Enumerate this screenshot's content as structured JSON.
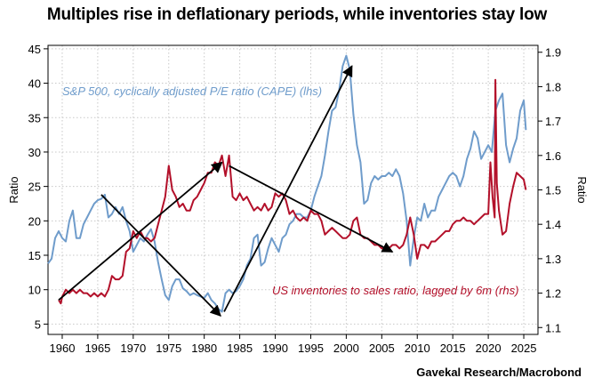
{
  "title": "Multiples rise in deflationary periods, while inventories stay low",
  "source": "Gavekal Research/Macrobond",
  "colors": {
    "cape": "#6f9ccb",
    "inventory": "#b3102a",
    "arrow": "#000000",
    "grid": "#c8c8c8"
  },
  "chart_data": {
    "type": "line",
    "title": "Multiples rise in deflationary periods, while inventories stay low",
    "xlim": [
      1958,
      2027
    ],
    "x_ticks": [
      1960,
      1965,
      1970,
      1975,
      1980,
      1985,
      1990,
      1995,
      2000,
      2005,
      2010,
      2015,
      2020,
      2025
    ],
    "y_left": {
      "label": "Ratio",
      "lim": [
        3.5,
        45.5
      ],
      "ticks": [
        5,
        10,
        15,
        20,
        25,
        30,
        35,
        40,
        45
      ]
    },
    "y_right": {
      "label": "Ratio",
      "lim": [
        1.08,
        1.92
      ],
      "ticks": [
        1.1,
        1.2,
        1.3,
        1.4,
        1.5,
        1.6,
        1.7,
        1.8,
        1.9
      ]
    },
    "grid": true,
    "series": [
      {
        "name": "S&P 500, cyclically adjusted P/E ratio (CAPE) (lhs)",
        "axis": "left",
        "points": [
          [
            1958,
            13.8
          ],
          [
            1958.5,
            14.5
          ],
          [
            1959,
            17.5
          ],
          [
            1959.5,
            18.5
          ],
          [
            1960,
            17.5
          ],
          [
            1960.5,
            17
          ],
          [
            1961,
            20
          ],
          [
            1961.5,
            21.5
          ],
          [
            1962,
            17.5
          ],
          [
            1962.5,
            17.5
          ],
          [
            1963,
            19.5
          ],
          [
            1963.5,
            20.5
          ],
          [
            1964,
            21.5
          ],
          [
            1964.5,
            22.5
          ],
          [
            1965,
            23
          ],
          [
            1965.5,
            23.2
          ],
          [
            1966,
            23.8
          ],
          [
            1966.5,
            20.5
          ],
          [
            1967,
            21
          ],
          [
            1967.5,
            22
          ],
          [
            1968,
            21
          ],
          [
            1968.5,
            22
          ],
          [
            1969,
            20
          ],
          [
            1969.5,
            18.5
          ],
          [
            1970,
            15.5
          ],
          [
            1970.5,
            16.5
          ],
          [
            1971,
            17.5
          ],
          [
            1971.5,
            17
          ],
          [
            1972,
            18
          ],
          [
            1972.5,
            18.8
          ],
          [
            1973,
            17
          ],
          [
            1973.5,
            14
          ],
          [
            1974,
            11.5
          ],
          [
            1974.5,
            9.2
          ],
          [
            1975,
            8.5
          ],
          [
            1975.5,
            10.5
          ],
          [
            1976,
            11.5
          ],
          [
            1976.5,
            11.5
          ],
          [
            1977,
            10.2
          ],
          [
            1977.5,
            9.8
          ],
          [
            1978,
            9.2
          ],
          [
            1978.5,
            9.5
          ],
          [
            1979,
            9.2
          ],
          [
            1979.5,
            9
          ],
          [
            1980,
            8.8
          ],
          [
            1980.5,
            9.5
          ],
          [
            1981,
            8.5
          ],
          [
            1981.5,
            8
          ],
          [
            1982,
            7.2
          ],
          [
            1982.5,
            6.8
          ],
          [
            1983,
            9.5
          ],
          [
            1983.5,
            10
          ],
          [
            1984,
            9.5
          ],
          [
            1984.5,
            9.8
          ],
          [
            1985,
            10.5
          ],
          [
            1985.5,
            11.5
          ],
          [
            1986,
            13.5
          ],
          [
            1986.5,
            14.5
          ],
          [
            1987,
            17.5
          ],
          [
            1987.5,
            18
          ],
          [
            1988,
            13.5
          ],
          [
            1988.5,
            14
          ],
          [
            1989,
            16
          ],
          [
            1989.5,
            17.5
          ],
          [
            1990,
            16.5
          ],
          [
            1990.5,
            15.5
          ],
          [
            1991,
            17.5
          ],
          [
            1991.5,
            18
          ],
          [
            1992,
            19.5
          ],
          [
            1992.5,
            20
          ],
          [
            1993,
            21
          ],
          [
            1993.5,
            21
          ],
          [
            1994,
            20.5
          ],
          [
            1994.5,
            20.5
          ],
          [
            1995,
            21.5
          ],
          [
            1995.5,
            23.5
          ],
          [
            1996,
            25
          ],
          [
            1996.5,
            26.5
          ],
          [
            1997,
            29.5
          ],
          [
            1997.5,
            33
          ],
          [
            1998,
            36
          ],
          [
            1998.5,
            36.5
          ],
          [
            1999,
            39
          ],
          [
            1999.5,
            42.5
          ],
          [
            2000,
            44
          ],
          [
            2000.5,
            42
          ],
          [
            2001,
            35.5
          ],
          [
            2001.5,
            31
          ],
          [
            2002,
            28.5
          ],
          [
            2002.5,
            22.5
          ],
          [
            2003,
            23
          ],
          [
            2003.5,
            25.5
          ],
          [
            2004,
            26.5
          ],
          [
            2004.5,
            26
          ],
          [
            2005,
            26.5
          ],
          [
            2005.5,
            26.5
          ],
          [
            2006,
            27
          ],
          [
            2006.5,
            26.5
          ],
          [
            2007,
            27.5
          ],
          [
            2007.5,
            26.5
          ],
          [
            2008,
            24
          ],
          [
            2008.5,
            20
          ],
          [
            2009,
            13.5
          ],
          [
            2009.5,
            17.5
          ],
          [
            2010,
            20.5
          ],
          [
            2010.5,
            20
          ],
          [
            2011,
            22.5
          ],
          [
            2011.5,
            20.5
          ],
          [
            2012,
            21.5
          ],
          [
            2012.5,
            21.5
          ],
          [
            2013,
            23.5
          ],
          [
            2013.5,
            24.5
          ],
          [
            2014,
            25.5
          ],
          [
            2014.5,
            26.5
          ],
          [
            2015,
            27
          ],
          [
            2015.5,
            26.5
          ],
          [
            2016,
            25
          ],
          [
            2016.5,
            26.5
          ],
          [
            2017,
            29
          ],
          [
            2017.5,
            30.5
          ],
          [
            2018,
            33
          ],
          [
            2018.5,
            32
          ],
          [
            2019,
            29
          ],
          [
            2019.5,
            30
          ],
          [
            2020,
            31
          ],
          [
            2020.5,
            30
          ],
          [
            2021,
            36
          ],
          [
            2021.5,
            37.5
          ],
          [
            2022,
            38.5
          ],
          [
            2022.5,
            31
          ],
          [
            2023,
            28.5
          ],
          [
            2023.5,
            30.5
          ],
          [
            2024,
            32
          ],
          [
            2024.5,
            36
          ],
          [
            2025,
            37.5
          ],
          [
            2025.3,
            33.2
          ]
        ]
      },
      {
        "name": "US inventories to sales ratio, lagged by 6m (rhs)",
        "axis": "right",
        "points": [
          [
            1959.5,
            1.18
          ],
          [
            1959.8,
            1.17
          ],
          [
            1960,
            1.19
          ],
          [
            1960.5,
            1.21
          ],
          [
            1961,
            1.2
          ],
          [
            1961.5,
            1.21
          ],
          [
            1962,
            1.2
          ],
          [
            1962.5,
            1.21
          ],
          [
            1963,
            1.2
          ],
          [
            1963.5,
            1.2
          ],
          [
            1964,
            1.19
          ],
          [
            1964.5,
            1.2
          ],
          [
            1965,
            1.19
          ],
          [
            1965.5,
            1.2
          ],
          [
            1966,
            1.19
          ],
          [
            1966.5,
            1.21
          ],
          [
            1967,
            1.25
          ],
          [
            1967.5,
            1.24
          ],
          [
            1968,
            1.24
          ],
          [
            1968.5,
            1.25
          ],
          [
            1969,
            1.32
          ],
          [
            1969.5,
            1.33
          ],
          [
            1970,
            1.38
          ],
          [
            1970.5,
            1.36
          ],
          [
            1971,
            1.38
          ],
          [
            1971.5,
            1.36
          ],
          [
            1972,
            1.36
          ],
          [
            1972.5,
            1.35
          ],
          [
            1973,
            1.36
          ],
          [
            1973.5,
            1.4
          ],
          [
            1974,
            1.44
          ],
          [
            1974.5,
            1.48
          ],
          [
            1975,
            1.57
          ],
          [
            1975.5,
            1.5
          ],
          [
            1976,
            1.48
          ],
          [
            1976.5,
            1.45
          ],
          [
            1977,
            1.46
          ],
          [
            1977.5,
            1.44
          ],
          [
            1978,
            1.44
          ],
          [
            1978.5,
            1.47
          ],
          [
            1979,
            1.48
          ],
          [
            1979.5,
            1.5
          ],
          [
            1980,
            1.52
          ],
          [
            1980.5,
            1.55
          ],
          [
            1981,
            1.55
          ],
          [
            1981.5,
            1.58
          ],
          [
            1982,
            1.57
          ],
          [
            1982.5,
            1.6
          ],
          [
            1983,
            1.54
          ],
          [
            1983.5,
            1.6
          ],
          [
            1984,
            1.48
          ],
          [
            1984.5,
            1.47
          ],
          [
            1985,
            1.49
          ],
          [
            1985.5,
            1.47
          ],
          [
            1986,
            1.48
          ],
          [
            1986.5,
            1.46
          ],
          [
            1987,
            1.44
          ],
          [
            1987.5,
            1.45
          ],
          [
            1988,
            1.44
          ],
          [
            1988.5,
            1.46
          ],
          [
            1989,
            1.44
          ],
          [
            1989.5,
            1.45
          ],
          [
            1990,
            1.49
          ],
          [
            1990.5,
            1.48
          ],
          [
            1991,
            1.49
          ],
          [
            1991.5,
            1.47
          ],
          [
            1992,
            1.43
          ],
          [
            1992.5,
            1.44
          ],
          [
            1993,
            1.42
          ],
          [
            1993.5,
            1.41
          ],
          [
            1994,
            1.42
          ],
          [
            1994.5,
            1.41
          ],
          [
            1995,
            1.44
          ],
          [
            1995.5,
            1.43
          ],
          [
            1996,
            1.43
          ],
          [
            1996.5,
            1.41
          ],
          [
            1997,
            1.37
          ],
          [
            1997.5,
            1.38
          ],
          [
            1998,
            1.39
          ],
          [
            1998.5,
            1.38
          ],
          [
            1999,
            1.37
          ],
          [
            1999.5,
            1.36
          ],
          [
            2000,
            1.36
          ],
          [
            2000.5,
            1.37
          ],
          [
            2001,
            1.41
          ],
          [
            2001.5,
            1.42
          ],
          [
            2002,
            1.37
          ],
          [
            2002.5,
            1.36
          ],
          [
            2003,
            1.36
          ],
          [
            2003.5,
            1.35
          ],
          [
            2004,
            1.34
          ],
          [
            2004.5,
            1.34
          ],
          [
            2005,
            1.33
          ],
          [
            2005.5,
            1.33
          ],
          [
            2006,
            1.33
          ],
          [
            2006.5,
            1.34
          ],
          [
            2007,
            1.34
          ],
          [
            2007.5,
            1.33
          ],
          [
            2008,
            1.34
          ],
          [
            2008.5,
            1.37
          ],
          [
            2009,
            1.42
          ],
          [
            2009.5,
            1.37
          ],
          [
            2010,
            1.3
          ],
          [
            2010.5,
            1.34
          ],
          [
            2011,
            1.34
          ],
          [
            2011.5,
            1.33
          ],
          [
            2012,
            1.35
          ],
          [
            2012.5,
            1.35
          ],
          [
            2013,
            1.36
          ],
          [
            2013.5,
            1.37
          ],
          [
            2014,
            1.38
          ],
          [
            2014.5,
            1.38
          ],
          [
            2015,
            1.4
          ],
          [
            2015.5,
            1.41
          ],
          [
            2016,
            1.41
          ],
          [
            2016.5,
            1.42
          ],
          [
            2017,
            1.41
          ],
          [
            2017.5,
            1.41
          ],
          [
            2018,
            1.4
          ],
          [
            2018.5,
            1.41
          ],
          [
            2019,
            1.42
          ],
          [
            2019.5,
            1.43
          ],
          [
            2020,
            1.43
          ],
          [
            2020.3,
            1.58
          ],
          [
            2020.6,
            1.48
          ],
          [
            2020.9,
            1.42
          ],
          [
            2021,
            1.82
          ],
          [
            2021.2,
            1.52
          ],
          [
            2021.5,
            1.44
          ],
          [
            2022,
            1.37
          ],
          [
            2022.5,
            1.38
          ],
          [
            2023,
            1.46
          ],
          [
            2023.5,
            1.51
          ],
          [
            2024,
            1.55
          ],
          [
            2024.5,
            1.54
          ],
          [
            2025,
            1.53
          ],
          [
            2025.3,
            1.5
          ]
        ]
      }
    ],
    "arrows": [
      {
        "from": [
          1959.5,
          1.18
        ],
        "to": [
          1982.5,
          1.58
        ],
        "axis": "right"
      },
      {
        "from": [
          1983.5,
          1.57
        ],
        "to": [
          2006.5,
          1.32
        ],
        "axis": "right"
      },
      {
        "from": [
          1965.5,
          23.8
        ],
        "to": [
          1982.3,
          6.2
        ],
        "axis": "left"
      },
      {
        "from": [
          1982.8,
          6.8
        ],
        "to": [
          2000.8,
          42.5
        ],
        "axis": "left"
      }
    ],
    "annotations": [
      {
        "text": "S&P 500, cyclically adjusted P/E ratio (CAPE) (lhs)",
        "series": 0
      },
      {
        "text": "US inventories to sales ratio, lagged by 6m (rhs)",
        "series": 1
      }
    ]
  }
}
